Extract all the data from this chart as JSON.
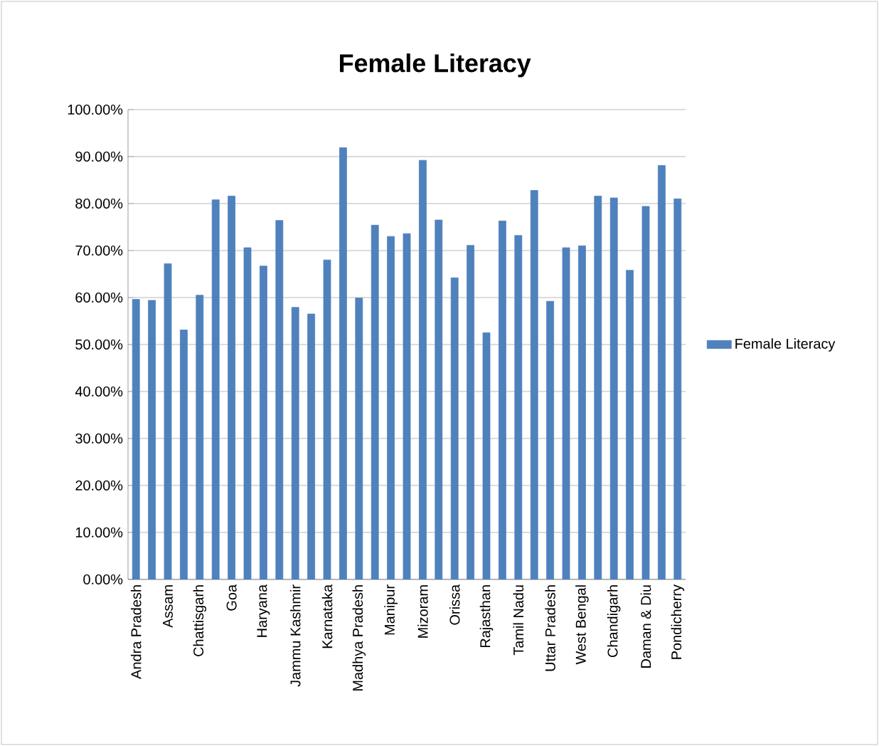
{
  "chart_data": {
    "type": "bar",
    "title": "Female Literacy",
    "categories": [
      "Andra Pradesh",
      null,
      "Assam",
      null,
      "Chattisgarh",
      null,
      "Goa",
      null,
      "Haryana",
      null,
      "Jammu Kashmir",
      null,
      "Karnataka",
      null,
      "Madhya Pradesh",
      null,
      "Manipur",
      null,
      "Mizoram",
      null,
      "Orissa",
      null,
      "Rajasthan",
      null,
      "Tamil Nadu",
      null,
      "Uttar Pradesh",
      null,
      "West Bengal",
      null,
      "Chandigarh",
      null,
      "Daman & Diu",
      null,
      "Pondicherry"
    ],
    "series": [
      {
        "name": "Female Literacy",
        "color": "#4f81bd",
        "values": [
          59.6,
          59.4,
          67.2,
          53.1,
          60.5,
          80.8,
          81.6,
          70.6,
          66.7,
          76.4,
          57.9,
          56.5,
          68.0,
          91.9,
          59.9,
          75.4,
          73.0,
          73.6,
          89.2,
          76.5,
          64.2,
          71.1,
          52.5,
          76.3,
          73.2,
          82.8,
          59.2,
          70.6,
          71.0,
          81.6,
          81.2,
          65.8,
          79.4,
          88.1,
          81.0
        ]
      }
    ],
    "ylim": [
      0,
      100
    ],
    "yticks": [
      {
        "value": 0,
        "label": "0.00%"
      },
      {
        "value": 10,
        "label": "10.00%"
      },
      {
        "value": 20,
        "label": "20.00%"
      },
      {
        "value": 30,
        "label": "30.00%"
      },
      {
        "value": 40,
        "label": "40.00%"
      },
      {
        "value": 50,
        "label": "50.00%"
      },
      {
        "value": 60,
        "label": "60.00%"
      },
      {
        "value": 70,
        "label": "70.00%"
      },
      {
        "value": 80,
        "label": "80.00%"
      },
      {
        "value": 90,
        "label": "90.00%"
      },
      {
        "value": 100,
        "label": "100.00%"
      }
    ],
    "grid": "y",
    "legend": "right"
  }
}
